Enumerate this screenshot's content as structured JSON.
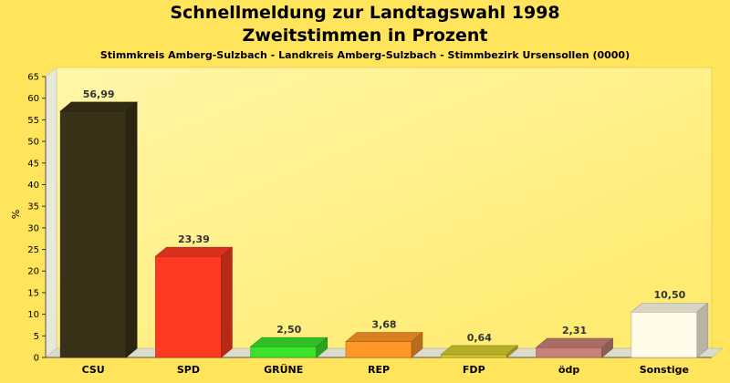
{
  "chart_data": {
    "type": "bar",
    "title": "Schnellmeldung zur Landtagswahl 1998",
    "subtitle": "Zweitstimmen in Prozent",
    "caption": "Stimmkreis Amberg-Sulzbach - Landkreis Amberg-Sulzbach - Stimmbezirk Ursensollen (0000)",
    "ylabel": "%",
    "xlabel": "",
    "ylim": [
      0,
      65
    ],
    "yticks": [
      0,
      5,
      10,
      15,
      20,
      25,
      30,
      35,
      40,
      45,
      50,
      55,
      60,
      65
    ],
    "grid": false,
    "categories": [
      "CSU",
      "SPD",
      "GRÜNE",
      "REP",
      "FDP",
      "ödp",
      "Sonstige"
    ],
    "values": [
      56.99,
      23.39,
      2.5,
      3.68,
      0.64,
      2.31,
      10.5
    ],
    "value_labels": [
      "56,99",
      "23,39",
      "2,50",
      "3,68",
      "0,64",
      "2,31",
      "10,50"
    ],
    "colors": [
      "#3a3218",
      "#ff3a22",
      "#3ae22a",
      "#ff9628",
      "#d8cc2e",
      "#c88078",
      "#fffbe8"
    ]
  }
}
